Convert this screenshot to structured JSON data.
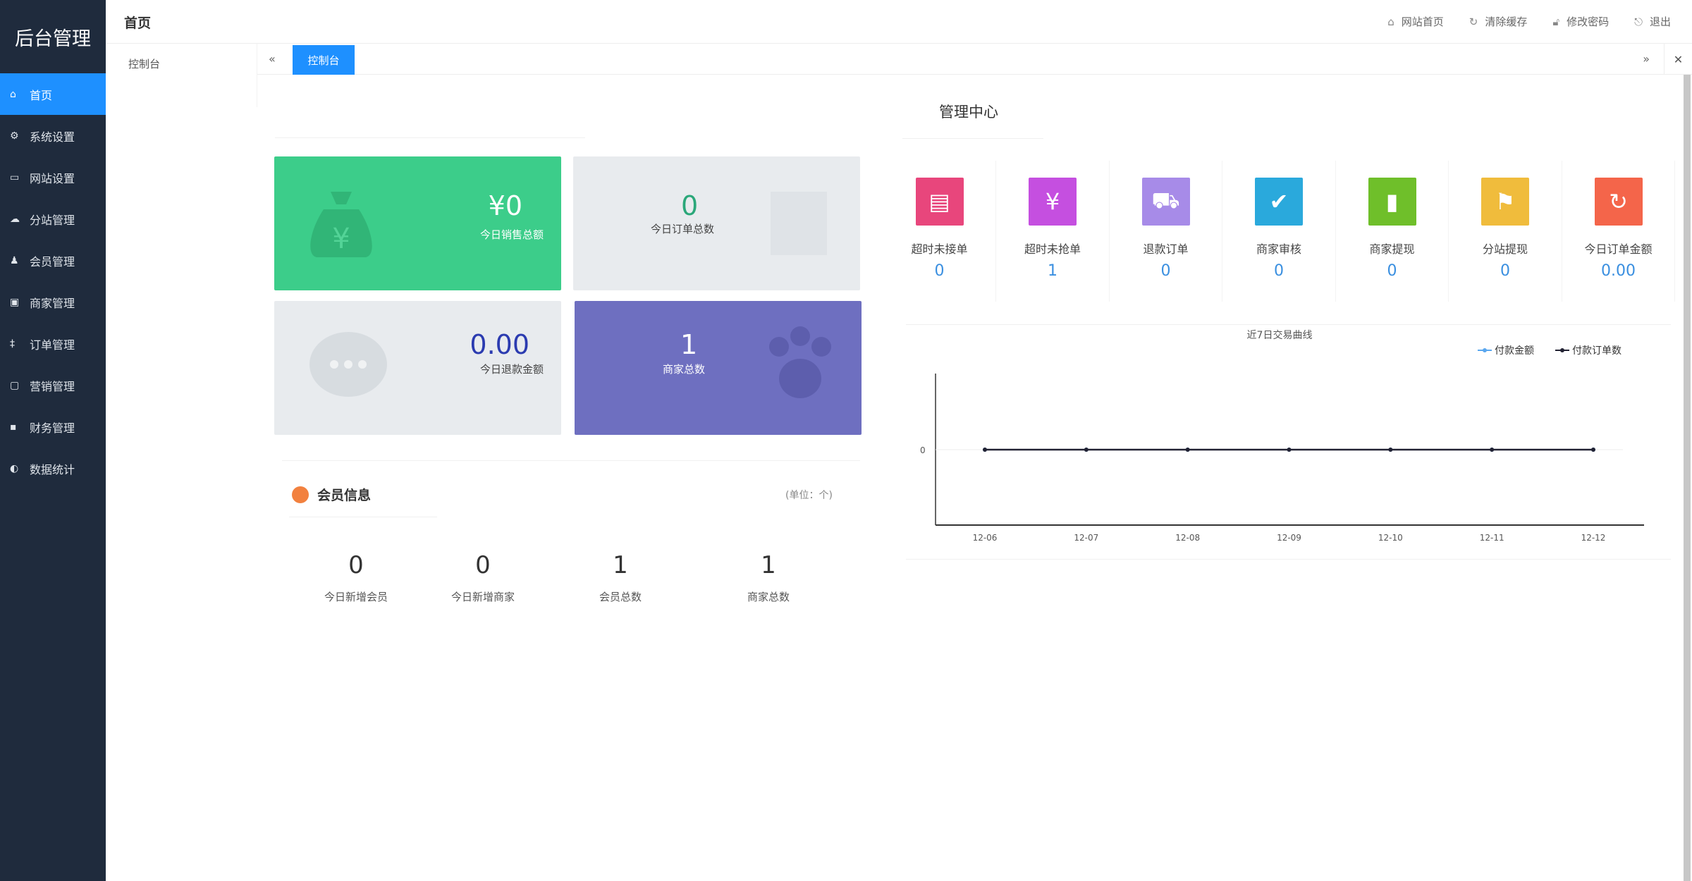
{
  "sidebar": {
    "logo": "后台管理",
    "items": [
      {
        "label": "首页",
        "icon": "home-icon"
      },
      {
        "label": "系统设置",
        "icon": "gear-icon"
      },
      {
        "label": "网站设置",
        "icon": "monitor-icon"
      },
      {
        "label": "分站管理",
        "icon": "network-icon"
      },
      {
        "label": "会员管理",
        "icon": "user-icon"
      },
      {
        "label": "商家管理",
        "icon": "store-icon"
      },
      {
        "label": "订单管理",
        "icon": "order-icon"
      },
      {
        "label": "营销管理",
        "icon": "calendar-icon"
      },
      {
        "label": "财务管理",
        "icon": "lock-icon"
      },
      {
        "label": "数据统计",
        "icon": "chart-icon"
      }
    ]
  },
  "header": {
    "title": "首页",
    "links": [
      {
        "label": "网站首页"
      },
      {
        "label": "清除缓存"
      },
      {
        "label": "修改密码"
      },
      {
        "label": "退出"
      }
    ]
  },
  "subpanel": {
    "item": "控制台"
  },
  "tabs": {
    "active": "控制台"
  },
  "cards": [
    {
      "value": "¥0",
      "label": "今日销售总额",
      "color": "#3ccd8a"
    },
    {
      "value": "0",
      "label": "今日订单总数",
      "color": "#e8ebee"
    },
    {
      "value": "0.00",
      "label": "今日退款金额",
      "color": "#e8ebee"
    },
    {
      "value": "1",
      "label": "商家总数",
      "color": "#6e6fc0"
    }
  ],
  "member": {
    "title": "会员信息",
    "unit": "(单位：个)",
    "stats": [
      {
        "value": "0",
        "label": "今日新增会员"
      },
      {
        "value": "0",
        "label": "今日新增商家"
      },
      {
        "value": "1",
        "label": "会员总数"
      },
      {
        "value": "1",
        "label": "商家总数"
      }
    ]
  },
  "management": {
    "title": "管理中心",
    "stats": [
      {
        "label": "超时未接单",
        "value": "0",
        "color": "#e8467c"
      },
      {
        "label": "超时未抢单",
        "value": "1",
        "color": "#c54fe0"
      },
      {
        "label": "退款订单",
        "value": "0",
        "color": "#a78be8"
      },
      {
        "label": "商家审核",
        "value": "0",
        "color": "#2aa9dc"
      },
      {
        "label": "商家提现",
        "value": "0",
        "color": "#6fbf2a"
      },
      {
        "label": "分站提现",
        "value": "0",
        "color": "#f0bc3c"
      },
      {
        "label": "今日订单金额",
        "value": "0.00",
        "color": "#f4654a"
      }
    ]
  },
  "chart_data": {
    "type": "line",
    "title": "近7日交易曲线",
    "categories": [
      "12-06",
      "12-07",
      "12-08",
      "12-09",
      "12-10",
      "12-11",
      "12-12"
    ],
    "series": [
      {
        "name": "付款金额",
        "values": [
          0,
          0,
          0,
          0,
          0,
          0,
          0
        ],
        "color": "#5aa7ef"
      },
      {
        "name": "付款订单数",
        "values": [
          0,
          0,
          0,
          0,
          0,
          0,
          0
        ],
        "color": "#222233"
      }
    ],
    "yticks": [
      "0"
    ],
    "legend": "top-right"
  }
}
